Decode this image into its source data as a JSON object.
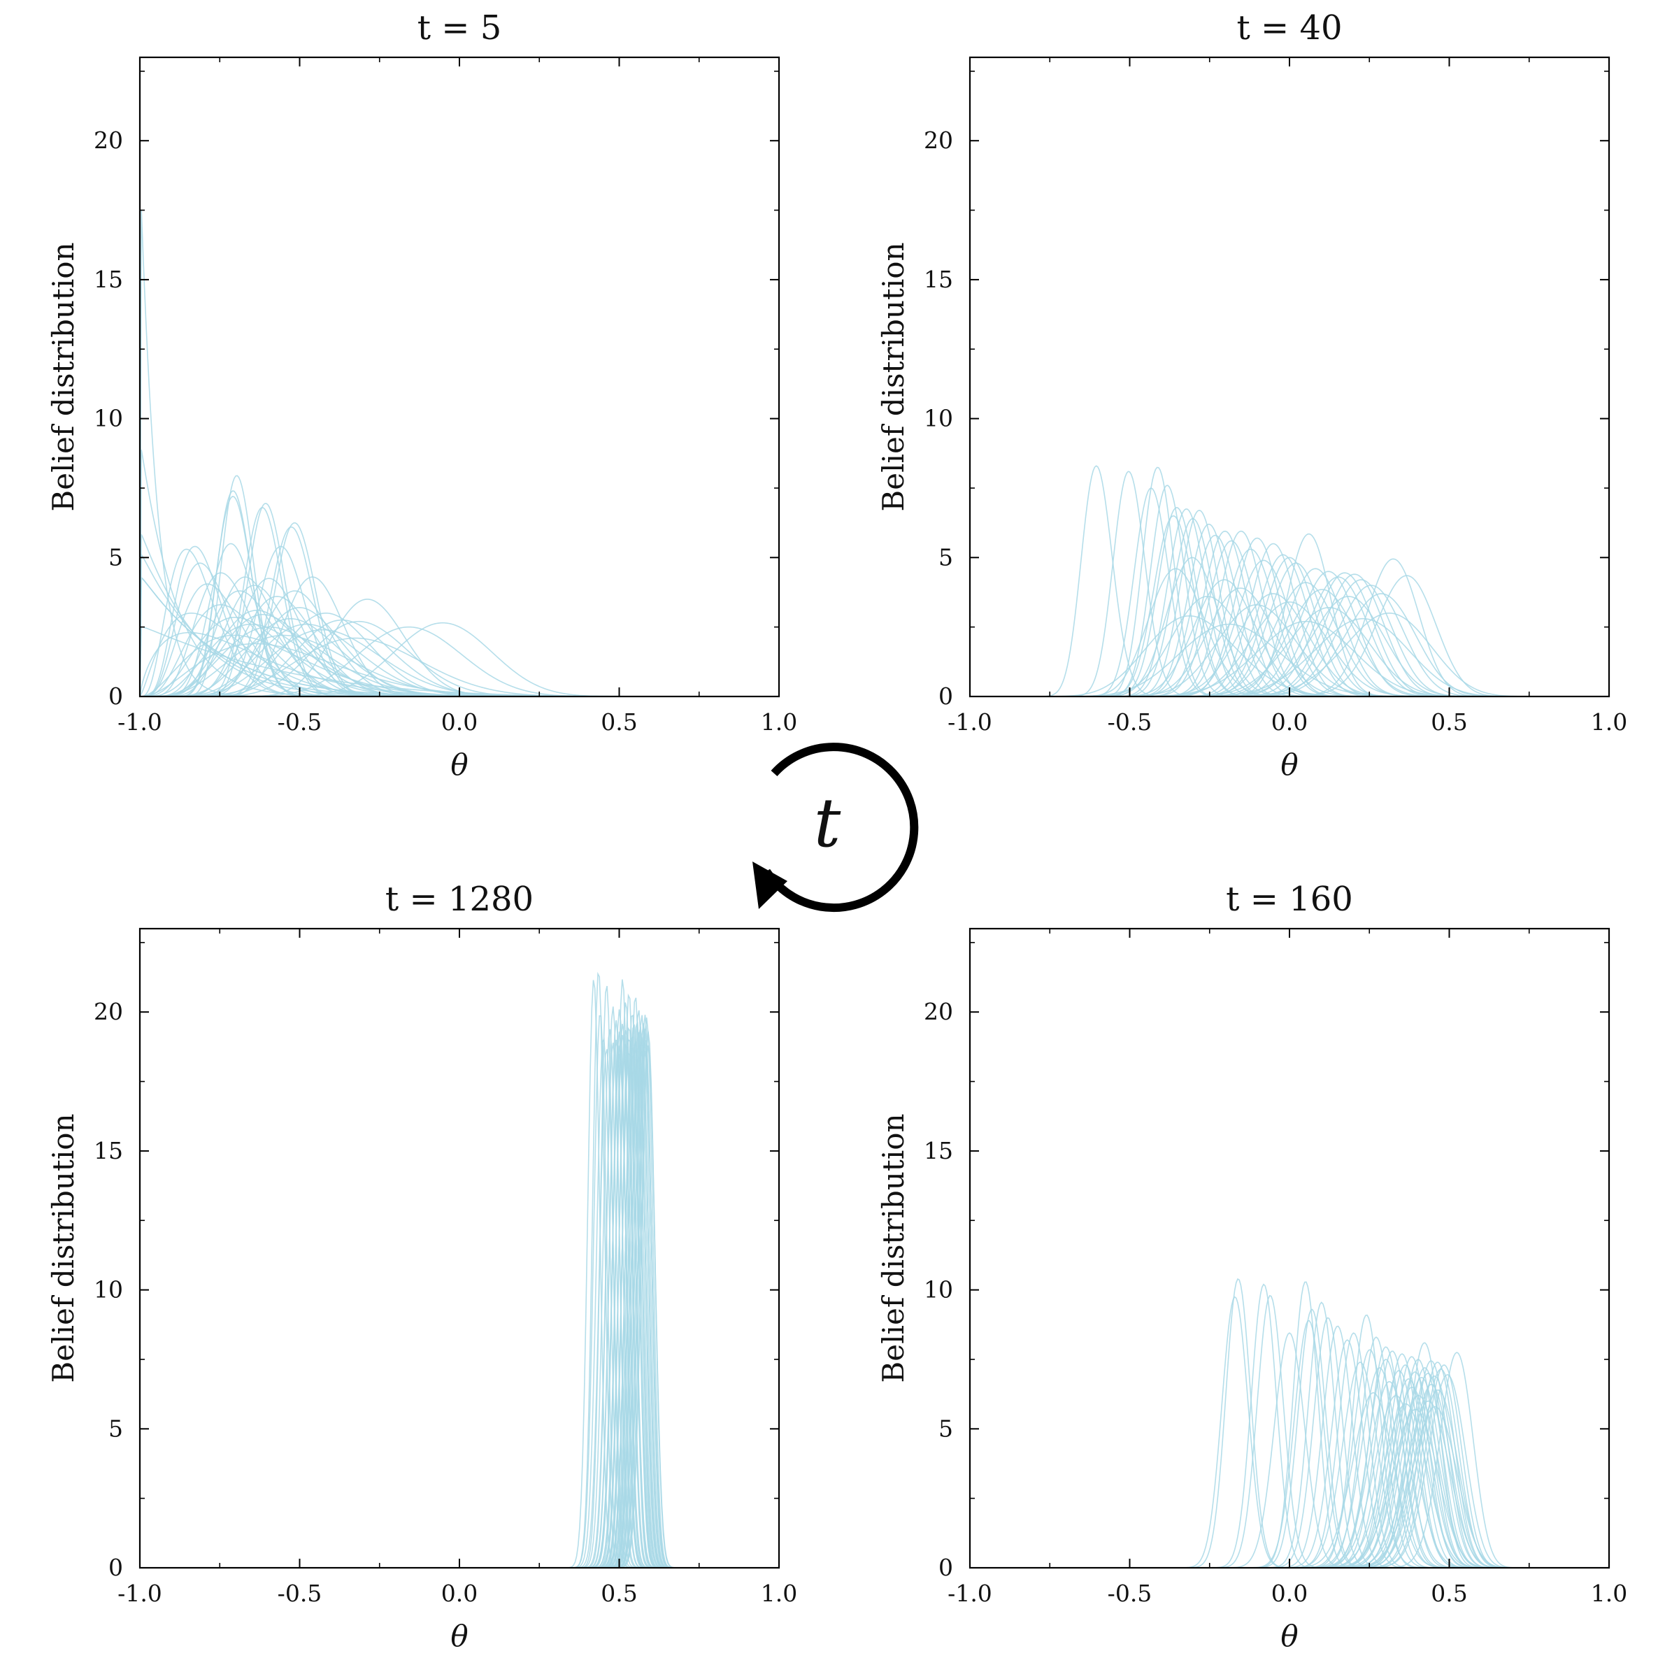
{
  "chart_data": [
    {
      "type": "line",
      "title": "t = 5",
      "xlabel": "θ",
      "ylabel": "Belief distribution",
      "xlim": [
        -1.0,
        1.0
      ],
      "ylim": [
        0,
        23
      ],
      "xticks": [
        "-1.0",
        "-0.5",
        "0.0",
        "0.5",
        "1.0"
      ],
      "yticks": [
        "0",
        "5",
        "10",
        "15",
        "20"
      ],
      "line_color": "#a8d8e6",
      "curve_family": "beta",
      "series": [
        {
          "mean": -0.69,
          "peak": 7.95
        },
        {
          "mean": -0.7,
          "peak": 7.4
        },
        {
          "mean": -0.7,
          "peak": 7.2
        },
        {
          "mean": -0.6,
          "peak": 6.95
        },
        {
          "mean": -0.61,
          "peak": 6.8
        },
        {
          "mean": -0.51,
          "peak": 6.25
        },
        {
          "mean": -0.52,
          "peak": 6.1
        },
        {
          "mean": -0.7,
          "peak": 5.5
        },
        {
          "mean": -0.55,
          "peak": 5.4
        },
        {
          "mean": -0.8,
          "peak": 5.4
        },
        {
          "mean": -0.82,
          "peak": 5.3
        },
        {
          "mean": -0.78,
          "peak": 4.8
        },
        {
          "mean": -0.72,
          "peak": 4.45
        },
        {
          "mean": -0.65,
          "peak": 4.3
        },
        {
          "mean": -0.58,
          "peak": 4.25
        },
        {
          "mean": -0.45,
          "peak": 4.3
        },
        {
          "mean": -0.75,
          "peak": 4.05
        },
        {
          "mean": -0.62,
          "peak": 4.0
        },
        {
          "mean": -0.83,
          "peak": 4.0
        },
        {
          "mean": -0.66,
          "peak": 3.8
        },
        {
          "mean": -0.5,
          "peak": 3.8
        },
        {
          "mean": -0.8,
          "peak": 3.6
        },
        {
          "mean": -0.55,
          "peak": 3.6
        },
        {
          "mean": -0.85,
          "peak": 3.4
        },
        {
          "mean": -0.7,
          "peak": 3.3
        },
        {
          "mean": -0.48,
          "peak": 3.2
        },
        {
          "mean": -0.6,
          "peak": 3.1
        },
        {
          "mean": -0.75,
          "peak": 3.0
        },
        {
          "mean": -0.4,
          "peak": 3.0
        },
        {
          "mean": -0.58,
          "peak": 2.95
        },
        {
          "mean": -0.65,
          "peak": 2.85
        },
        {
          "mean": -0.5,
          "peak": 2.8
        },
        {
          "mean": -0.35,
          "peak": 2.75
        },
        {
          "mean": -0.28,
          "peak": 3.5
        },
        {
          "mean": -0.3,
          "peak": 2.7
        },
        {
          "mean": -0.6,
          "peak": 2.6
        },
        {
          "mean": -0.45,
          "peak": 2.6
        },
        {
          "mean": -0.05,
          "peak": 2.65
        },
        {
          "mean": -0.15,
          "peak": 2.5
        },
        {
          "mean": -0.55,
          "peak": 2.5
        },
        {
          "mean": -0.4,
          "peak": 2.4
        },
        {
          "mean": -0.7,
          "peak": 2.3
        },
        {
          "mean": -0.62,
          "peak": 2.2
        },
        {
          "mean": -0.5,
          "peak": 2.2
        },
        {
          "mean": -0.3,
          "peak": 2.1
        },
        {
          "mean": -0.8,
          "peak": 2.0
        },
        {
          "mean": -0.55,
          "peak": 1.9
        },
        {
          "mean": -0.68,
          "peak": 1.8
        },
        {
          "mean": -0.9,
          "peak": 1.7
        },
        {
          "mean": -0.95,
          "peak": 1.5
        }
      ]
    },
    {
      "type": "line",
      "title": "t = 40",
      "xlabel": "θ",
      "ylabel": "Belief distribution",
      "xlim": [
        -1.0,
        1.0
      ],
      "ylim": [
        0,
        23
      ],
      "xticks": [
        "-1.0",
        "-0.5",
        "0.0",
        "0.5",
        "1.0"
      ],
      "yticks": [
        "0",
        "5",
        "10",
        "15",
        "20"
      ],
      "line_color": "#a8d8e6",
      "curve_family": "beta",
      "series": [
        {
          "mean": -0.6,
          "peak": 8.3
        },
        {
          "mean": -0.5,
          "peak": 8.1
        },
        {
          "mean": -0.41,
          "peak": 8.25
        },
        {
          "mean": -0.43,
          "peak": 7.5
        },
        {
          "mean": -0.38,
          "peak": 7.6
        },
        {
          "mean": -0.35,
          "peak": 6.8
        },
        {
          "mean": -0.32,
          "peak": 6.75
        },
        {
          "mean": -0.28,
          "peak": 6.7
        },
        {
          "mean": -0.36,
          "peak": 6.5
        },
        {
          "mean": -0.3,
          "peak": 6.4
        },
        {
          "mean": -0.25,
          "peak": 6.2
        },
        {
          "mean": -0.2,
          "peak": 5.95
        },
        {
          "mean": -0.15,
          "peak": 5.95
        },
        {
          "mean": -0.23,
          "peak": 5.8
        },
        {
          "mean": -0.18,
          "peak": 5.6
        },
        {
          "mean": -0.1,
          "peak": 5.7
        },
        {
          "mean": -0.05,
          "peak": 5.5
        },
        {
          "mean": 0.06,
          "peak": 5.85
        },
        {
          "mean": -0.12,
          "peak": 5.3
        },
        {
          "mean": -0.02,
          "peak": 5.1
        },
        {
          "mean": 0.0,
          "peak": 5.0
        },
        {
          "mean": -0.3,
          "peak": 5.0
        },
        {
          "mean": -0.08,
          "peak": 4.9
        },
        {
          "mean": 0.32,
          "peak": 4.95
        },
        {
          "mean": 0.02,
          "peak": 4.8
        },
        {
          "mean": -0.35,
          "peak": 4.6
        },
        {
          "mean": 0.08,
          "peak": 4.6
        },
        {
          "mean": 0.12,
          "peak": 4.5
        },
        {
          "mean": 0.17,
          "peak": 4.45
        },
        {
          "mean": 0.2,
          "peak": 4.4
        },
        {
          "mean": 0.36,
          "peak": 4.35
        },
        {
          "mean": 0.15,
          "peak": 4.3
        },
        {
          "mean": -0.2,
          "peak": 4.2
        },
        {
          "mean": 0.22,
          "peak": 4.2
        },
        {
          "mean": 0.05,
          "peak": 4.1
        },
        {
          "mean": 0.25,
          "peak": 4.0
        },
        {
          "mean": -0.15,
          "peak": 3.9
        },
        {
          "mean": 0.1,
          "peak": 3.85
        },
        {
          "mean": -0.05,
          "peak": 3.7
        },
        {
          "mean": 0.28,
          "peak": 3.7
        },
        {
          "mean": -0.25,
          "peak": 3.6
        },
        {
          "mean": 0.18,
          "peak": 3.6
        },
        {
          "mean": 0.0,
          "peak": 3.4
        },
        {
          "mean": -0.1,
          "peak": 3.3
        },
        {
          "mean": 0.12,
          "peak": 3.2
        },
        {
          "mean": 0.3,
          "peak": 3.0
        },
        {
          "mean": -0.3,
          "peak": 2.9
        },
        {
          "mean": 0.22,
          "peak": 2.8
        },
        {
          "mean": 0.05,
          "peak": 2.7
        },
        {
          "mean": -0.18,
          "peak": 2.6
        }
      ]
    },
    {
      "type": "line",
      "title": "t = 1280",
      "xlabel": "θ",
      "ylabel": "Belief distribution",
      "xlim": [
        -1.0,
        1.0
      ],
      "ylim": [
        0,
        23
      ],
      "xticks": [
        "-1.0",
        "-0.5",
        "0.0",
        "0.5",
        "1.0"
      ],
      "yticks": [
        "0",
        "5",
        "10",
        "15",
        "20"
      ],
      "line_color": "#a8d8e6",
      "curve_family": "beta",
      "series": [
        {
          "mean": 0.435,
          "peak": 21.5
        },
        {
          "mean": 0.42,
          "peak": 21.2
        },
        {
          "mean": 0.51,
          "peak": 21.2
        },
        {
          "mean": 0.46,
          "peak": 21.0
        },
        {
          "mean": 0.53,
          "peak": 20.7
        },
        {
          "mean": 0.55,
          "peak": 20.6
        },
        {
          "mean": 0.52,
          "peak": 20.4
        },
        {
          "mean": 0.44,
          "peak": 20.0
        },
        {
          "mean": 0.48,
          "peak": 20.2
        },
        {
          "mean": 0.5,
          "peak": 20.1
        },
        {
          "mean": 0.54,
          "peak": 20.0
        },
        {
          "mean": 0.56,
          "peak": 20.1
        },
        {
          "mean": 0.57,
          "peak": 19.9
        },
        {
          "mean": 0.58,
          "peak": 19.9
        },
        {
          "mean": 0.585,
          "peak": 19.8
        },
        {
          "mean": 0.49,
          "peak": 19.7
        },
        {
          "mean": 0.51,
          "peak": 19.6
        },
        {
          "mean": 0.53,
          "peak": 19.5
        },
        {
          "mean": 0.545,
          "peak": 19.6
        },
        {
          "mean": 0.555,
          "peak": 19.7
        },
        {
          "mean": 0.565,
          "peak": 19.5
        },
        {
          "mean": 0.575,
          "peak": 19.6
        },
        {
          "mean": 0.47,
          "peak": 19.4
        },
        {
          "mean": 0.5,
          "peak": 19.3
        },
        {
          "mean": 0.52,
          "peak": 19.4
        },
        {
          "mean": 0.54,
          "peak": 19.2
        },
        {
          "mean": 0.56,
          "peak": 19.3
        },
        {
          "mean": 0.58,
          "peak": 19.4
        },
        {
          "mean": 0.45,
          "peak": 19.1
        },
        {
          "mean": 0.49,
          "peak": 19.0
        },
        {
          "mean": 0.51,
          "peak": 19.2
        },
        {
          "mean": 0.53,
          "peak": 19.1
        },
        {
          "mean": 0.55,
          "peak": 19.0
        },
        {
          "mean": 0.57,
          "peak": 19.1
        },
        {
          "mean": 0.59,
          "peak": 19.3
        },
        {
          "mean": 0.48,
          "peak": 18.9
        },
        {
          "mean": 0.5,
          "peak": 18.8
        },
        {
          "mean": 0.52,
          "peak": 18.9
        },
        {
          "mean": 0.54,
          "peak": 18.8
        },
        {
          "mean": 0.56,
          "peak": 18.9
        },
        {
          "mean": 0.58,
          "peak": 19.0
        },
        {
          "mean": 0.46,
          "peak": 18.7
        },
        {
          "mean": 0.53,
          "peak": 18.6
        },
        {
          "mean": 0.55,
          "peak": 18.7
        },
        {
          "mean": 0.57,
          "peak": 18.6
        },
        {
          "mean": 0.59,
          "peak": 18.8
        },
        {
          "mean": 0.5,
          "peak": 18.5
        },
        {
          "mean": 0.54,
          "peak": 18.5
        },
        {
          "mean": 0.56,
          "peak": 18.4
        },
        {
          "mean": 0.58,
          "peak": 18.6
        }
      ]
    },
    {
      "type": "line",
      "title": "t = 160",
      "xlabel": "θ",
      "ylabel": "Belief distribution",
      "xlim": [
        -1.0,
        1.0
      ],
      "ylim": [
        0,
        23
      ],
      "xticks": [
        "-1.0",
        "-0.5",
        "0.0",
        "0.5",
        "1.0"
      ],
      "yticks": [
        "0",
        "5",
        "10",
        "15",
        "20"
      ],
      "line_color": "#a8d8e6",
      "curve_family": "beta",
      "series": [
        {
          "mean": -0.16,
          "peak": 10.4
        },
        {
          "mean": -0.17,
          "peak": 9.75
        },
        {
          "mean": -0.08,
          "peak": 10.2
        },
        {
          "mean": -0.06,
          "peak": 9.8
        },
        {
          "mean": 0.05,
          "peak": 10.3
        },
        {
          "mean": 0.07,
          "peak": 9.3
        },
        {
          "mean": 0.1,
          "peak": 9.55
        },
        {
          "mean": 0.12,
          "peak": 9.0
        },
        {
          "mean": 0.06,
          "peak": 8.9
        },
        {
          "mean": 0.0,
          "peak": 8.45
        },
        {
          "mean": 0.15,
          "peak": 8.7
        },
        {
          "mean": 0.24,
          "peak": 9.1
        },
        {
          "mean": 0.2,
          "peak": 8.45
        },
        {
          "mean": 0.27,
          "peak": 8.3
        },
        {
          "mean": 0.18,
          "peak": 8.2
        },
        {
          "mean": 0.3,
          "peak": 7.95
        },
        {
          "mean": 0.25,
          "peak": 7.85
        },
        {
          "mean": 0.42,
          "peak": 8.1
        },
        {
          "mean": 0.32,
          "peak": 7.8
        },
        {
          "mean": 0.35,
          "peak": 7.7
        },
        {
          "mean": 0.52,
          "peak": 7.75
        },
        {
          "mean": 0.38,
          "peak": 7.6
        },
        {
          "mean": 0.4,
          "peak": 7.5
        },
        {
          "mean": 0.3,
          "peak": 7.5
        },
        {
          "mean": 0.44,
          "peak": 7.45
        },
        {
          "mean": 0.46,
          "peak": 7.4
        },
        {
          "mean": 0.22,
          "peak": 7.4
        },
        {
          "mean": 0.36,
          "peak": 7.3
        },
        {
          "mean": 0.48,
          "peak": 7.3
        },
        {
          "mean": 0.28,
          "peak": 7.2
        },
        {
          "mean": 0.42,
          "peak": 7.2
        },
        {
          "mean": 0.47,
          "peak": 7.15
        },
        {
          "mean": 0.34,
          "peak": 7.1
        },
        {
          "mean": 0.39,
          "peak": 7.05
        },
        {
          "mean": 0.43,
          "peak": 7.0
        },
        {
          "mean": 0.45,
          "peak": 6.9
        },
        {
          "mean": 0.49,
          "peak": 6.95
        },
        {
          "mean": 0.37,
          "peak": 6.8
        },
        {
          "mean": 0.41,
          "peak": 6.85
        },
        {
          "mean": 0.31,
          "peak": 6.7
        },
        {
          "mean": 0.44,
          "peak": 6.6
        },
        {
          "mean": 0.38,
          "peak": 6.5
        },
        {
          "mean": 0.46,
          "peak": 6.4
        },
        {
          "mean": 0.26,
          "peak": 6.3
        },
        {
          "mean": 0.33,
          "peak": 6.2
        },
        {
          "mean": 0.4,
          "peak": 6.2
        },
        {
          "mean": 0.43,
          "peak": 6.0
        },
        {
          "mean": 0.36,
          "peak": 5.9
        },
        {
          "mean": 0.45,
          "peak": 5.8
        },
        {
          "mean": 0.39,
          "peak": 5.7
        }
      ]
    }
  ],
  "cycle_label": "t"
}
